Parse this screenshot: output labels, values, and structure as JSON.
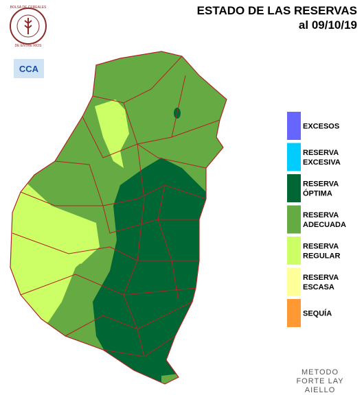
{
  "header": {
    "title": "ESTADO DE LAS RESERVAS",
    "date": "al 09/10/19"
  },
  "logo": {
    "ring_top": "BOLSA DE CEREALES",
    "ring_bottom": "DE ENTRE RIOS",
    "badge": "CCA"
  },
  "legend": {
    "items": [
      {
        "lines": [
          "EXCESOS"
        ],
        "color": "#6666ff"
      },
      {
        "lines": [
          "RESERVA",
          "EXCESIVA"
        ],
        "color": "#00ccff"
      },
      {
        "lines": [
          "RESERVA",
          "ÓPTIMA"
        ],
        "color": "#006633"
      },
      {
        "lines": [
          "RESERVA",
          "ADECUADA"
        ],
        "color": "#66aa44"
      },
      {
        "lines": [
          "RESERVA",
          "REGULAR"
        ],
        "color": "#ccff66"
      },
      {
        "lines": [
          "RESERVA",
          "ESCASA"
        ],
        "color": "#ffff99"
      },
      {
        "lines": [
          "SEQUÍA"
        ],
        "color": "#ff9933"
      }
    ]
  },
  "method": {
    "lines": [
      "METODO",
      "FORTE LAY",
      "AIELLO"
    ]
  }
}
